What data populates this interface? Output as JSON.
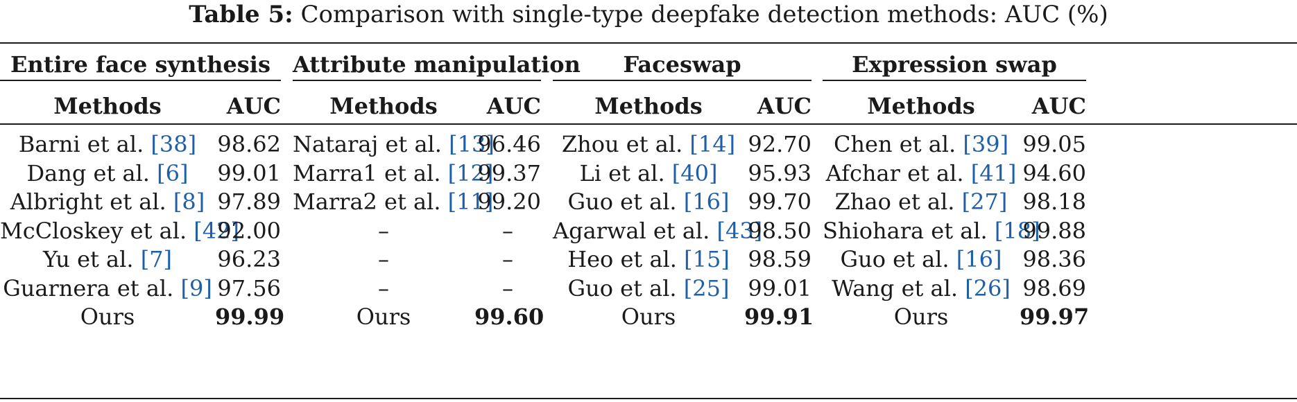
{
  "caption": {
    "label": "Table 5:",
    "text": "Comparison with single-type deepfake detection methods: AUC (%)"
  },
  "header": {
    "method_label": "Methods",
    "auc_label": "AUC"
  },
  "groups": [
    {
      "title": "Entire face synthesis",
      "rows": [
        {
          "method": "Barni et al.",
          "ref": "38",
          "auc": "98.62"
        },
        {
          "method": "Dang et al.",
          "ref": "6",
          "auc": "99.01"
        },
        {
          "method": "Albright et al.",
          "ref": "8",
          "auc": "97.89"
        },
        {
          "method": "McCloskey et al.",
          "ref": "42",
          "auc": "92.00"
        },
        {
          "method": "Yu et al.",
          "ref": "7",
          "auc": "96.23"
        },
        {
          "method": "Guarnera et al.",
          "ref": "9",
          "auc": "97.56"
        },
        {
          "method": "Ours",
          "ref": "",
          "auc": "99.99"
        }
      ]
    },
    {
      "title": "Attribute manipulation",
      "rows": [
        {
          "method": "Nataraj et al.",
          "ref": "13",
          "auc": "96.46"
        },
        {
          "method": "Marra1 et al.",
          "ref": "12",
          "auc": "99.37"
        },
        {
          "method": "Marra2 et al.",
          "ref": "11",
          "auc": "99.20"
        },
        {
          "method": "–",
          "ref": "",
          "auc": "–"
        },
        {
          "method": "–",
          "ref": "",
          "auc": "–"
        },
        {
          "method": "–",
          "ref": "",
          "auc": "–"
        },
        {
          "method": "Ours",
          "ref": "",
          "auc": "99.60"
        }
      ]
    },
    {
      "title": "Faceswap",
      "rows": [
        {
          "method": "Zhou et al.",
          "ref": "14",
          "auc": "92.70"
        },
        {
          "method": "Li et al.",
          "ref": "40",
          "auc": "95.93"
        },
        {
          "method": "Guo et al.",
          "ref": "16",
          "auc": "99.70"
        },
        {
          "method": "Agarwal et al.",
          "ref": "43",
          "auc": "98.50"
        },
        {
          "method": "Heo et al.",
          "ref": "15",
          "auc": "98.59"
        },
        {
          "method": "Guo et al.",
          "ref": "25",
          "auc": "99.01"
        },
        {
          "method": "Ours",
          "ref": "",
          "auc": "99.91"
        }
      ]
    },
    {
      "title": "Expression swap",
      "rows": [
        {
          "method": "Chen et al.",
          "ref": "39",
          "auc": "99.05"
        },
        {
          "method": "Afchar et al.",
          "ref": "41",
          "auc": "94.60"
        },
        {
          "method": "Zhao et al.",
          "ref": "27",
          "auc": "98.18"
        },
        {
          "method": "Shiohara et al.",
          "ref": "18",
          "auc": "99.88"
        },
        {
          "method": "Guo et al.",
          "ref": "16",
          "auc": "98.36"
        },
        {
          "method": "Wang et al.",
          "ref": "26",
          "auc": "98.69"
        },
        {
          "method": "Ours",
          "ref": "",
          "auc": "99.97"
        }
      ]
    }
  ]
}
